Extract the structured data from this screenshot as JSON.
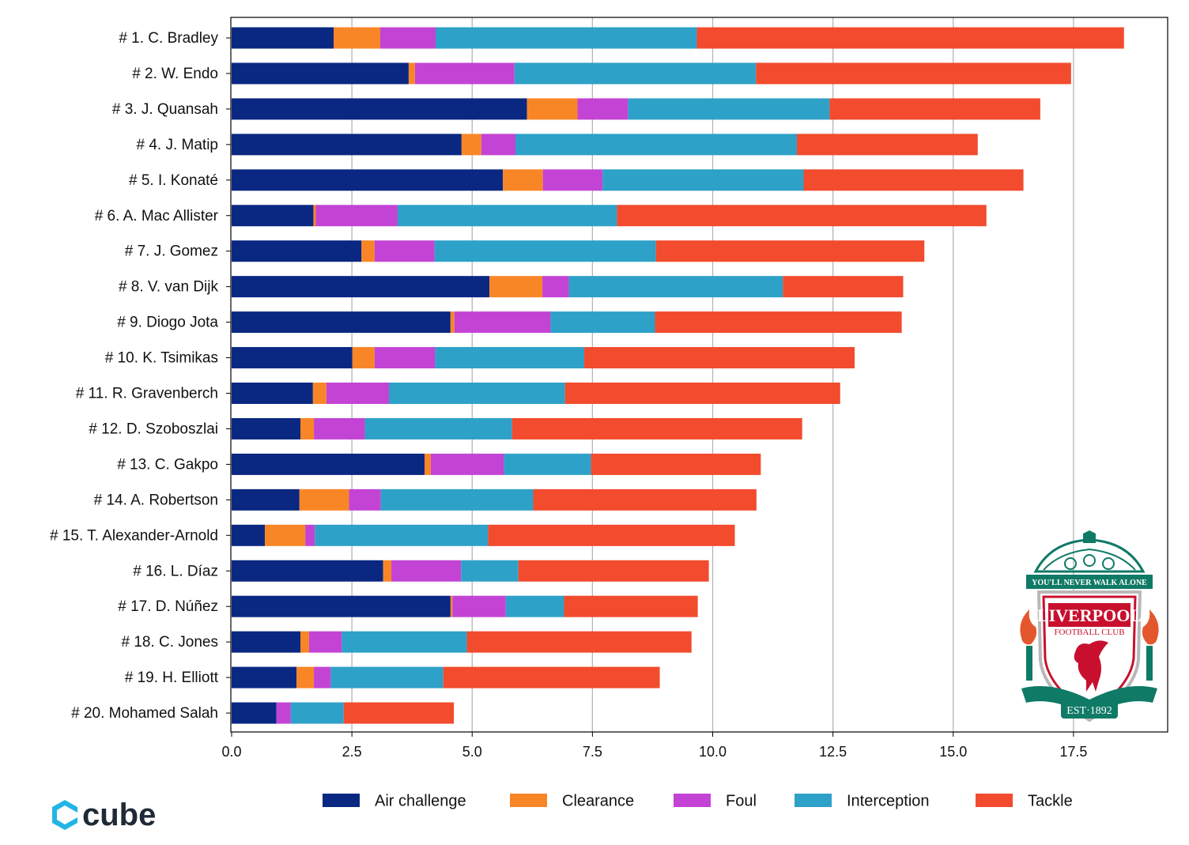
{
  "chart_data": {
    "type": "bar",
    "orientation": "horizontal",
    "stacked": true,
    "xlim": [
      0,
      19.45
    ],
    "xticks": [
      0.0,
      2.5,
      5.0,
      7.5,
      10.0,
      12.5,
      15.0,
      17.5
    ],
    "xtick_labels": [
      "0.0",
      "2.5",
      "5.0",
      "7.5",
      "10.0",
      "12.5",
      "15.0",
      "17.5"
    ],
    "grid": "vertical",
    "legend_position": "bottom",
    "categories": [
      "# 1.  C. Bradley",
      "# 2.  W. Endo",
      "# 3.  J. Quansah",
      "# 4.  J. Matip",
      "# 5.  I. Konaté",
      "# 6.  A. Mac Allister",
      "# 7.  J. Gomez",
      "# 8.  V. van Dijk",
      "# 9.  Diogo Jota",
      "# 10.  K. Tsimikas",
      "# 11.  R. Gravenberch",
      "# 12.  D. Szoboszlai",
      "# 13.  C. Gakpo",
      "# 14.  A. Robertson",
      "# 15.  T. Alexander-Arnold",
      "# 16.  L. Díaz",
      "# 17.  D. Núñez",
      "# 18.  C. Jones",
      "# 19.  H. Elliott",
      "# 20.  Mohamed Salah"
    ],
    "series": [
      {
        "name": "Air challenge",
        "color": "#0a2882",
        "values": [
          2.12,
          3.68,
          6.14,
          4.78,
          5.64,
          1.7,
          2.7,
          5.36,
          4.55,
          2.51,
          1.69,
          1.43,
          4.01,
          1.41,
          0.69,
          3.15,
          4.55,
          1.43,
          1.35,
          0.93
        ]
      },
      {
        "name": "Clearance",
        "color": "#f98626",
        "values": [
          0.97,
          0.13,
          1.05,
          0.41,
          0.83,
          0.05,
          0.27,
          1.1,
          0.08,
          0.46,
          0.28,
          0.28,
          0.13,
          1.03,
          0.84,
          0.17,
          0.04,
          0.18,
          0.36,
          0.0
        ]
      },
      {
        "name": "Foul",
        "color": "#c344d4",
        "values": [
          1.15,
          2.07,
          1.05,
          0.71,
          1.24,
          1.7,
          1.25,
          0.55,
          2.0,
          1.26,
          1.3,
          1.06,
          1.52,
          0.66,
          0.2,
          1.45,
          1.11,
          0.68,
          0.35,
          0.3
        ]
      },
      {
        "name": "Interception",
        "color": "#2ea1c8",
        "values": [
          5.43,
          5.02,
          4.19,
          5.85,
          4.18,
          4.56,
          4.6,
          4.45,
          2.17,
          3.1,
          3.66,
          3.06,
          1.81,
          3.17,
          3.6,
          1.19,
          1.21,
          2.6,
          2.34,
          1.1
        ]
      },
      {
        "name": "Tackle",
        "color": "#f24b2e",
        "values": [
          8.88,
          6.55,
          4.38,
          3.76,
          4.57,
          7.68,
          5.58,
          2.5,
          5.13,
          5.62,
          5.72,
          6.03,
          3.53,
          4.64,
          5.13,
          3.96,
          2.78,
          4.67,
          4.5,
          2.29
        ]
      }
    ]
  },
  "logos": {
    "club_crest": {
      "icon": "liverpool-fc-crest",
      "motto": "YOU'LL NEVER WALK ALONE",
      "name": "LIVERPOOL",
      "subtitle": "FOOTBALL CLUB",
      "established": "EST·1892"
    },
    "brand": {
      "icon": "cube-logo",
      "text": "cube",
      "color": "#22b5e6"
    }
  }
}
